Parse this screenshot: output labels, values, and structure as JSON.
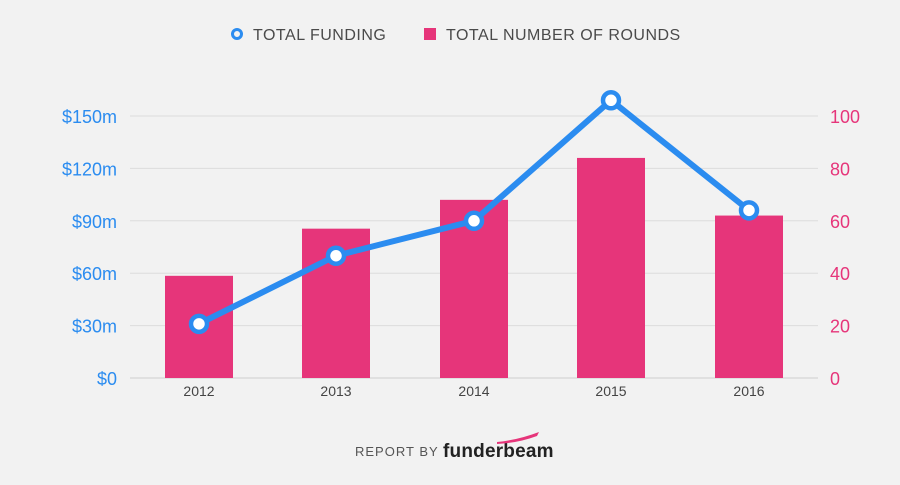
{
  "chart_data": {
    "type": "bar",
    "categories": [
      "2012",
      "2013",
      "2014",
      "2015",
      "2016"
    ],
    "series": [
      {
        "name": "TOTAL FUNDING",
        "kind": "line",
        "axis": "left",
        "color": "#2b8cf0",
        "values": [
          31,
          70,
          90,
          159,
          96
        ]
      },
      {
        "name": "TOTAL NUMBER OF ROUNDS",
        "kind": "bar",
        "axis": "right",
        "color": "#e6357a",
        "values": [
          39,
          57,
          68,
          84,
          62
        ]
      }
    ],
    "left_axis": {
      "ylim": [
        0,
        150
      ],
      "ticks": [
        0,
        30,
        60,
        90,
        120,
        150
      ],
      "tick_labels": [
        "$0",
        "$30m",
        "$60m",
        "$90m",
        "$120m",
        "$150m"
      ],
      "color": "#2b8cf0"
    },
    "right_axis": {
      "ylim": [
        0,
        100
      ],
      "ticks": [
        0,
        20,
        40,
        60,
        80,
        100
      ],
      "tick_labels": [
        "0",
        "20",
        "40",
        "60",
        "80",
        "100"
      ],
      "color": "#e6357a"
    },
    "grid": true,
    "legend_position": "top-center"
  },
  "footer": {
    "report_by": "REPORT BY",
    "brand": "funderbeam"
  },
  "colors": {
    "background": "#f2f2f2",
    "grid": "#dcdcdc"
  }
}
